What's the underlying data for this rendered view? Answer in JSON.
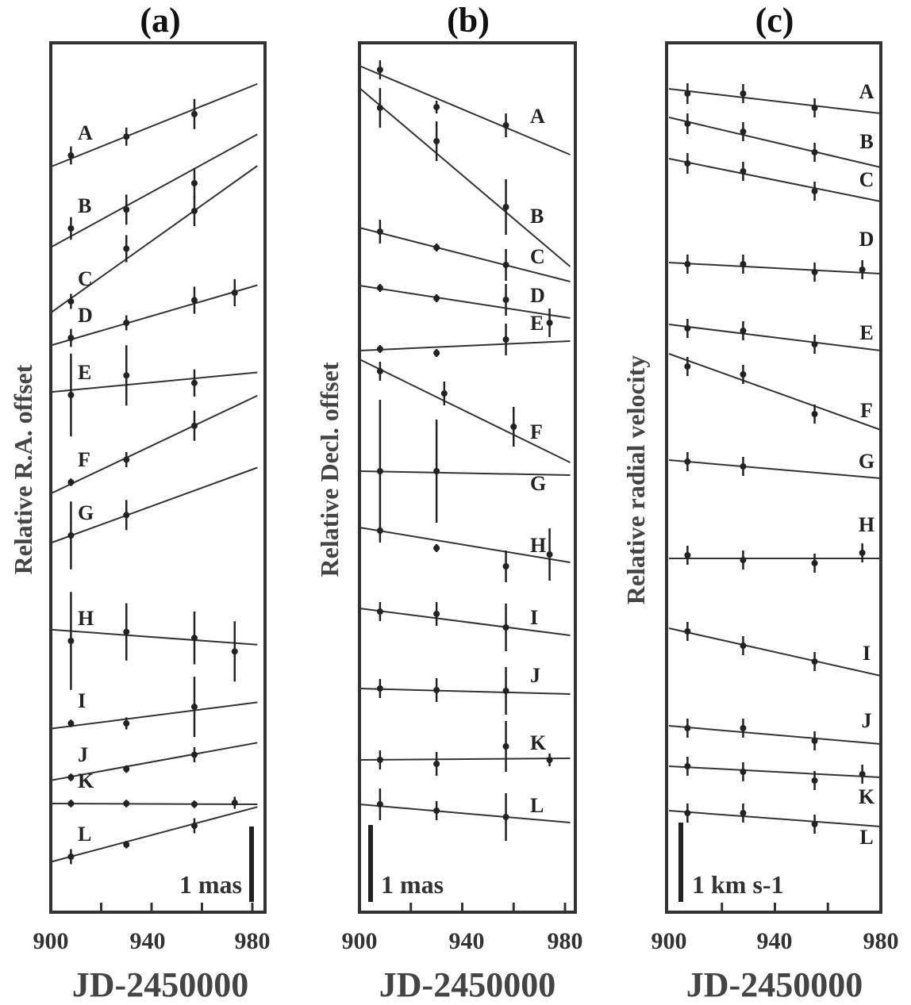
{
  "chart_data": [
    {
      "type": "scatter",
      "panel_title": "(a)",
      "ylabel": "Relative R.A. offset",
      "xlabel": "JD-2450000",
      "xlim": [
        900,
        982
      ],
      "x_ticks": [
        "900",
        "940",
        "980"
      ],
      "scale_bar": "1 mas",
      "series": [
        {
          "name": "A",
          "points": [
            [
              908,
              0.0,
              0.12
            ],
            [
              930,
              0.25,
              0.12
            ],
            [
              957,
              0.55,
              0.2
            ]
          ],
          "fit": [
            [
              900,
              -0.15
            ],
            [
              982,
              0.95
            ]
          ]
        },
        {
          "name": "B",
          "points": [
            [
              908,
              0.0,
              0.15
            ],
            [
              930,
              0.25,
              0.2
            ],
            [
              957,
              0.6,
              0.2
            ]
          ],
          "fit": [
            [
              900,
              -0.25
            ],
            [
              982,
              1.25
            ]
          ]
        },
        {
          "name": "C",
          "points": [
            [
              908,
              0.0,
              0.1
            ],
            [
              930,
              0.7,
              0.18
            ],
            [
              957,
              1.2,
              0.2
            ]
          ],
          "fit": [
            [
              900,
              -0.15
            ],
            [
              982,
              1.8
            ]
          ]
        },
        {
          "name": "D",
          "points": [
            [
              908,
              0.0,
              0.12
            ],
            [
              930,
              0.2,
              0.1
            ],
            [
              957,
              0.5,
              0.18
            ],
            [
              973,
              0.6,
              0.18
            ]
          ],
          "fit": [
            [
              900,
              -0.1
            ],
            [
              982,
              0.7
            ]
          ]
        },
        {
          "name": "E",
          "points": [
            [
              908,
              0.0,
              0.55
            ],
            [
              930,
              0.26,
              0.4
            ],
            [
              957,
              0.16,
              0.18
            ]
          ],
          "fit": [
            [
              900,
              0.04
            ],
            [
              982,
              0.3
            ]
          ]
        },
        {
          "name": "F",
          "points": [
            [
              908,
              0.0,
              0.05
            ],
            [
              930,
              0.3,
              0.1
            ],
            [
              957,
              0.75,
              0.2
            ]
          ],
          "fit": [
            [
              900,
              -0.15
            ],
            [
              982,
              1.15
            ]
          ]
        },
        {
          "name": "G",
          "points": [
            [
              908,
              0.0,
              0.45
            ],
            [
              930,
              0.27,
              0.2
            ]
          ],
          "fit": [
            [
              900,
              -0.1
            ],
            [
              982,
              0.9
            ]
          ]
        },
        {
          "name": "H",
          "points": [
            [
              908,
              0.0,
              0.65
            ],
            [
              930,
              0.12,
              0.38
            ],
            [
              957,
              0.04,
              0.35
            ],
            [
              973,
              -0.14,
              0.4
            ]
          ],
          "fit": [
            [
              900,
              0.15
            ],
            [
              982,
              -0.05
            ]
          ]
        },
        {
          "name": "I",
          "points": [
            [
              908,
              0.0,
              0.05
            ],
            [
              930,
              0.0,
              0.08
            ],
            [
              957,
              0.22,
              0.4
            ]
          ],
          "fit": [
            [
              900,
              -0.07
            ],
            [
              982,
              0.28
            ]
          ]
        },
        {
          "name": "J",
          "points": [
            [
              908,
              0.0,
              0.05
            ],
            [
              930,
              0.11,
              0.05
            ],
            [
              957,
              0.3,
              0.1
            ]
          ],
          "fit": [
            [
              900,
              -0.04
            ],
            [
              982,
              0.46
            ]
          ]
        },
        {
          "name": "K",
          "points": [
            [
              908,
              0.0,
              0.05
            ],
            [
              930,
              0.0,
              0.05
            ],
            [
              957,
              -0.01,
              0.05
            ],
            [
              973,
              0.01,
              0.08
            ]
          ],
          "fit": [
            [
              900,
              0.0
            ],
            [
              982,
              -0.01
            ]
          ]
        },
        {
          "name": "L",
          "points": [
            [
              908,
              0.0,
              0.1
            ],
            [
              930,
              0.16,
              0.05
            ],
            [
              957,
              0.41,
              0.1
            ]
          ],
          "fit": [
            [
              900,
              -0.07
            ],
            [
              982,
              0.66
            ]
          ]
        }
      ]
    },
    {
      "type": "scatter",
      "panel_title": "(b)",
      "ylabel": "Relative Decl. offset",
      "xlabel": "JD-2450000",
      "xlim": [
        900,
        982
      ],
      "x_ticks": [
        "900",
        "940",
        "980"
      ],
      "scale_bar": "1 mas",
      "series": [
        {
          "name": "A",
          "points": [
            [
              908,
              0.0,
              0.12
            ],
            [
              930,
              -0.47,
              0.08
            ],
            [
              957,
              -0.7,
              0.15
            ]
          ],
          "fit": [
            [
              900,
              0.05
            ],
            [
              982,
              -1.07
            ]
          ]
        },
        {
          "name": "B",
          "points": [
            [
              908,
              0.0,
              0.25
            ],
            [
              930,
              -0.42,
              0.25
            ],
            [
              957,
              -1.25,
              0.35
            ]
          ],
          "fit": [
            [
              900,
              0.25
            ],
            [
              982,
              -2.0
            ]
          ]
        },
        {
          "name": "C",
          "points": [
            [
              908,
              0.0,
              0.15
            ],
            [
              930,
              -0.2,
              0.05
            ],
            [
              957,
              -0.42,
              0.2
            ]
          ],
          "fit": [
            [
              900,
              0.05
            ],
            [
              982,
              -0.63
            ]
          ]
        },
        {
          "name": "D",
          "points": [
            [
              908,
              0.0,
              0.05
            ],
            [
              930,
              -0.13,
              0.05
            ],
            [
              957,
              -0.15,
              0.2
            ]
          ],
          "fit": [
            [
              900,
              0.03
            ],
            [
              982,
              -0.38
            ]
          ]
        },
        {
          "name": "E",
          "points": [
            [
              908,
              0.0,
              0.05
            ],
            [
              930,
              -0.05,
              0.05
            ],
            [
              957,
              0.12,
              0.2
            ],
            [
              974,
              0.33,
              0.18
            ]
          ],
          "fit": [
            [
              900,
              -0.02
            ],
            [
              982,
              0.1
            ]
          ]
        },
        {
          "name": "F",
          "points": [
            [
              908,
              0.0,
              0.12
            ],
            [
              933,
              -0.28,
              0.15
            ],
            [
              960,
              -0.7,
              0.25
            ]
          ],
          "fit": [
            [
              900,
              0.15
            ],
            [
              982,
              -1.15
            ]
          ]
        },
        {
          "name": "G",
          "points": [
            [
              908,
              0.0,
              0.9
            ],
            [
              930,
              0.0,
              0.65
            ]
          ],
          "fit": [
            [
              900,
              0.0
            ],
            [
              982,
              -0.05
            ]
          ]
        },
        {
          "name": "H",
          "points": [
            [
              908,
              0.0,
              0.05
            ],
            [
              930,
              -0.22,
              0.05
            ],
            [
              957,
              -0.45,
              0.2
            ],
            [
              974,
              -0.3,
              0.33
            ]
          ],
          "fit": [
            [
              900,
              0.04
            ],
            [
              982,
              -0.4
            ]
          ]
        },
        {
          "name": "I",
          "points": [
            [
              908,
              0.0,
              0.12
            ],
            [
              930,
              -0.03,
              0.15
            ],
            [
              957,
              -0.2,
              0.3
            ]
          ],
          "fit": [
            [
              900,
              0.04
            ],
            [
              982,
              -0.3
            ]
          ]
        },
        {
          "name": "J",
          "points": [
            [
              908,
              0.0,
              0.12
            ],
            [
              930,
              -0.02,
              0.15
            ],
            [
              957,
              -0.03,
              0.3
            ]
          ],
          "fit": [
            [
              900,
              0.0
            ],
            [
              982,
              -0.07
            ]
          ]
        },
        {
          "name": "K",
          "points": [
            [
              908,
              0.0,
              0.12
            ],
            [
              930,
              -0.05,
              0.15
            ],
            [
              957,
              0.17,
              0.32
            ],
            [
              974,
              0.0,
              0.08
            ]
          ],
          "fit": [
            [
              900,
              0.0
            ],
            [
              982,
              0.02
            ]
          ]
        },
        {
          "name": "L",
          "points": [
            [
              908,
              0.0,
              0.2
            ],
            [
              930,
              -0.08,
              0.12
            ],
            [
              957,
              -0.16,
              0.3
            ]
          ],
          "fit": [
            [
              900,
              0.0
            ],
            [
              982,
              -0.23
            ]
          ]
        }
      ]
    },
    {
      "type": "scatter",
      "panel_title": "(c)",
      "ylabel": "Relative radial velocity",
      "xlabel": "JD-2450000",
      "xlim": [
        900,
        982
      ],
      "x_ticks": [
        "900",
        "940",
        "980"
      ],
      "scale_bar": "1 km s-1",
      "series": [
        {
          "name": "A",
          "points": [
            [
              907,
              0.0,
              0.13
            ],
            [
              928,
              0.0,
              0.12
            ],
            [
              955,
              -0.18,
              0.12
            ]
          ],
          "fit": [
            [
              900,
              0.06
            ],
            [
              982,
              -0.25
            ]
          ]
        },
        {
          "name": "B",
          "points": [
            [
              907,
              0.0,
              0.13
            ],
            [
              928,
              -0.1,
              0.12
            ],
            [
              955,
              -0.36,
              0.12
            ]
          ],
          "fit": [
            [
              900,
              0.08
            ],
            [
              982,
              -0.55
            ]
          ]
        },
        {
          "name": "C",
          "points": [
            [
              907,
              0.0,
              0.13
            ],
            [
              928,
              -0.1,
              0.12
            ],
            [
              955,
              -0.35,
              0.12
            ]
          ],
          "fit": [
            [
              900,
              0.06
            ],
            [
              982,
              -0.48
            ]
          ]
        },
        {
          "name": "D",
          "points": [
            [
              907,
              0.0,
              0.12
            ],
            [
              928,
              0.0,
              0.12
            ],
            [
              955,
              -0.1,
              0.12
            ],
            [
              973,
              -0.07,
              0.12
            ]
          ],
          "fit": [
            [
              900,
              0.02
            ],
            [
              982,
              -0.12
            ]
          ]
        },
        {
          "name": "E",
          "points": [
            [
              907,
              0.0,
              0.12
            ],
            [
              928,
              -0.03,
              0.12
            ],
            [
              955,
              -0.2,
              0.12
            ]
          ],
          "fit": [
            [
              900,
              0.05
            ],
            [
              982,
              -0.28
            ]
          ]
        },
        {
          "name": "F",
          "points": [
            [
              907,
              0.0,
              0.12
            ],
            [
              928,
              -0.1,
              0.12
            ],
            [
              955,
              -0.6,
              0.12
            ]
          ],
          "fit": [
            [
              900,
              0.16
            ],
            [
              982,
              -0.8
            ]
          ]
        },
        {
          "name": "G",
          "points": [
            [
              907,
              0.0,
              0.12
            ],
            [
              928,
              -0.06,
              0.12
            ]
          ],
          "fit": [
            [
              900,
              0.02
            ],
            [
              982,
              -0.21
            ]
          ]
        },
        {
          "name": "H",
          "points": [
            [
              907,
              0.0,
              0.12
            ],
            [
              928,
              -0.06,
              0.12
            ],
            [
              955,
              -0.1,
              0.12
            ],
            [
              973,
              0.03,
              0.12
            ]
          ],
          "fit": [
            [
              900,
              -0.04
            ],
            [
              982,
              -0.04
            ]
          ]
        },
        {
          "name": "I",
          "points": [
            [
              907,
              0.0,
              0.12
            ],
            [
              928,
              -0.18,
              0.12
            ],
            [
              955,
              -0.38,
              0.12
            ]
          ],
          "fit": [
            [
              900,
              0.04
            ],
            [
              982,
              -0.56
            ]
          ]
        },
        {
          "name": "J",
          "points": [
            [
              907,
              0.0,
              0.12
            ],
            [
              928,
              0.0,
              0.12
            ],
            [
              955,
              -0.16,
              0.12
            ]
          ],
          "fit": [
            [
              900,
              0.03
            ],
            [
              982,
              -0.2
            ]
          ]
        },
        {
          "name": "K",
          "points": [
            [
              907,
              0.0,
              0.12
            ],
            [
              928,
              -0.07,
              0.12
            ],
            [
              955,
              -0.18,
              0.12
            ],
            [
              973,
              -0.1,
              0.12
            ]
          ],
          "fit": [
            [
              900,
              0.0
            ],
            [
              982,
              -0.14
            ]
          ]
        },
        {
          "name": "L",
          "points": [
            [
              907,
              0.0,
              0.12
            ],
            [
              928,
              0.0,
              0.12
            ],
            [
              955,
              -0.14,
              0.12
            ]
          ],
          "fit": [
            [
              900,
              0.03
            ],
            [
              982,
              -0.17
            ]
          ]
        }
      ]
    }
  ]
}
